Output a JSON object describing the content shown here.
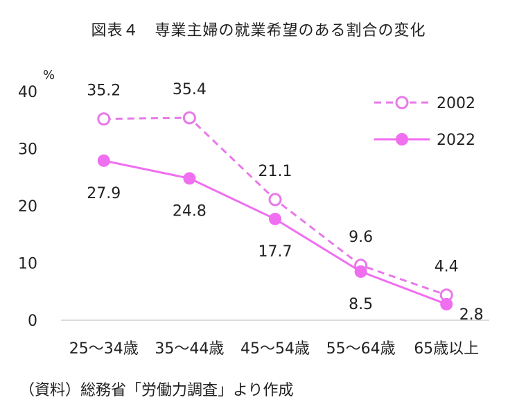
{
  "chart_data": {
    "type": "line",
    "title": "図表４　専業主婦の就業希望のある割合の変化",
    "source": "（資料）総務省「労働力調査」より作成",
    "y_unit": "%",
    "categories": [
      "25～34歳",
      "35～44歳",
      "45～54歳",
      "55～64歳",
      "65歳以上"
    ],
    "ylim": [
      0,
      40
    ],
    "yticks": [
      0,
      10,
      20,
      30,
      40
    ],
    "grid": false,
    "legend_position": "top-right",
    "series": [
      {
        "name": "2002",
        "values": [
          35.2,
          35.4,
          21.1,
          9.6,
          4.4
        ],
        "labels": [
          "35.2",
          "35.4",
          "21.1",
          "9.6",
          "4.4"
        ],
        "color": "#e879e8",
        "line_style": "dashed",
        "marker": "hollow-circle"
      },
      {
        "name": "2022",
        "values": [
          27.9,
          24.8,
          17.7,
          8.5,
          2.8
        ],
        "labels": [
          "27.9",
          "24.8",
          "17.7",
          "8.5",
          "2.8"
        ],
        "color": "#f06ef0",
        "line_style": "solid",
        "marker": "filled-circle"
      }
    ]
  }
}
